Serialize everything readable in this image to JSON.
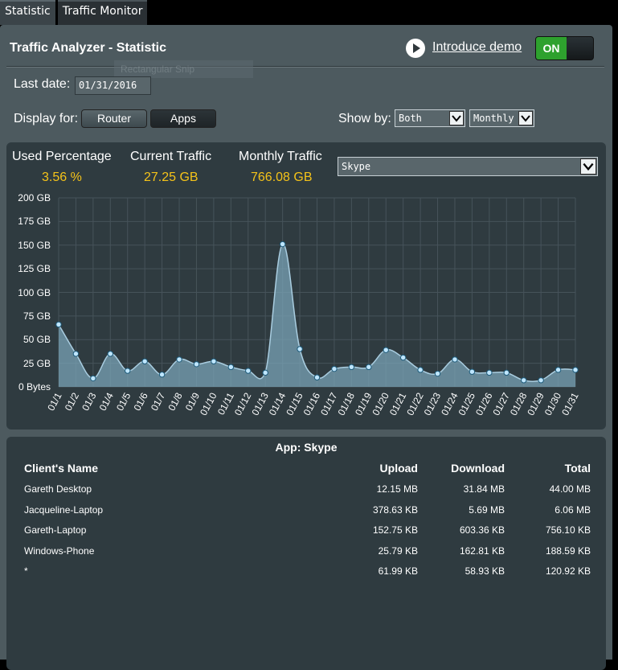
{
  "tabs": [
    {
      "label": "Statistic",
      "active": true
    },
    {
      "label": "Traffic Monitor",
      "active": false
    }
  ],
  "header": {
    "title": "Traffic Analyzer - Statistic",
    "demo_link": "Introduce demo",
    "toggle_label": "ON"
  },
  "ghost_text": "Rectangular Snip",
  "last_date": {
    "label": "Last date:",
    "value": "01/31/2016"
  },
  "display_for": {
    "label": "Display for:",
    "router": "Router",
    "apps": "Apps",
    "selected": "Apps"
  },
  "show_by": {
    "label": "Show by:",
    "direction": "Both",
    "period": "Monthly"
  },
  "stats": {
    "used_label": "Used Percentage",
    "used_value": "3.56 %",
    "current_label": "Current Traffic",
    "current_value": "27.25 GB",
    "monthly_label": "Monthly Traffic",
    "monthly_value": "766.08 GB"
  },
  "app_select": "Skype",
  "colors": {
    "accent_yellow": "#f5c319",
    "toggle_green": "#2ea12e",
    "area_fill": "#7aa3b5",
    "point": "#bfe6ff"
  },
  "chart_data": {
    "type": "area",
    "x": [
      "01/1",
      "01/2",
      "01/3",
      "01/4",
      "01/5",
      "01/6",
      "01/7",
      "01/8",
      "01/9",
      "01/10",
      "01/11",
      "01/12",
      "01/13",
      "01/14",
      "01/15",
      "01/16",
      "01/17",
      "01/18",
      "01/19",
      "01/20",
      "01/21",
      "01/22",
      "01/23",
      "01/24",
      "01/25",
      "01/26",
      "01/27",
      "01/28",
      "01/29",
      "01/30",
      "01/31"
    ],
    "values": [
      66,
      35,
      9,
      35,
      17,
      27,
      13,
      29,
      24,
      27,
      21,
      17,
      15,
      151,
      40,
      10,
      19,
      21,
      21,
      39,
      31,
      18,
      14,
      29,
      16,
      15,
      15,
      7,
      7,
      18,
      18
    ],
    "ylim": [
      0,
      200
    ],
    "yticks": [
      "0 Bytes",
      "25 GB",
      "50 GB",
      "75 GB",
      "100 GB",
      "125 GB",
      "150 GB",
      "175 GB",
      "200 GB"
    ],
    "grid": true
  },
  "table": {
    "app_title": "App: Skype",
    "headers": {
      "name": "Client's Name",
      "upload": "Upload",
      "download": "Download",
      "total": "Total"
    },
    "rows": [
      {
        "name": "Gareth Desktop",
        "upload": "12.15 MB",
        "download": "31.84 MB",
        "total": "44.00 MB"
      },
      {
        "name": "Jacqueline-Laptop",
        "upload": "378.63 KB",
        "download": "5.69 MB",
        "total": "6.06 MB"
      },
      {
        "name": "Gareth-Laptop",
        "upload": "152.75 KB",
        "download": "603.36 KB",
        "total": "756.10 KB"
      },
      {
        "name": "Windows-Phone",
        "upload": "25.79 KB",
        "download": "162.81 KB",
        "total": "188.59 KB"
      },
      {
        "name": "*",
        "upload": "61.99 KB",
        "download": "58.93 KB",
        "total": "120.92 KB"
      }
    ]
  }
}
